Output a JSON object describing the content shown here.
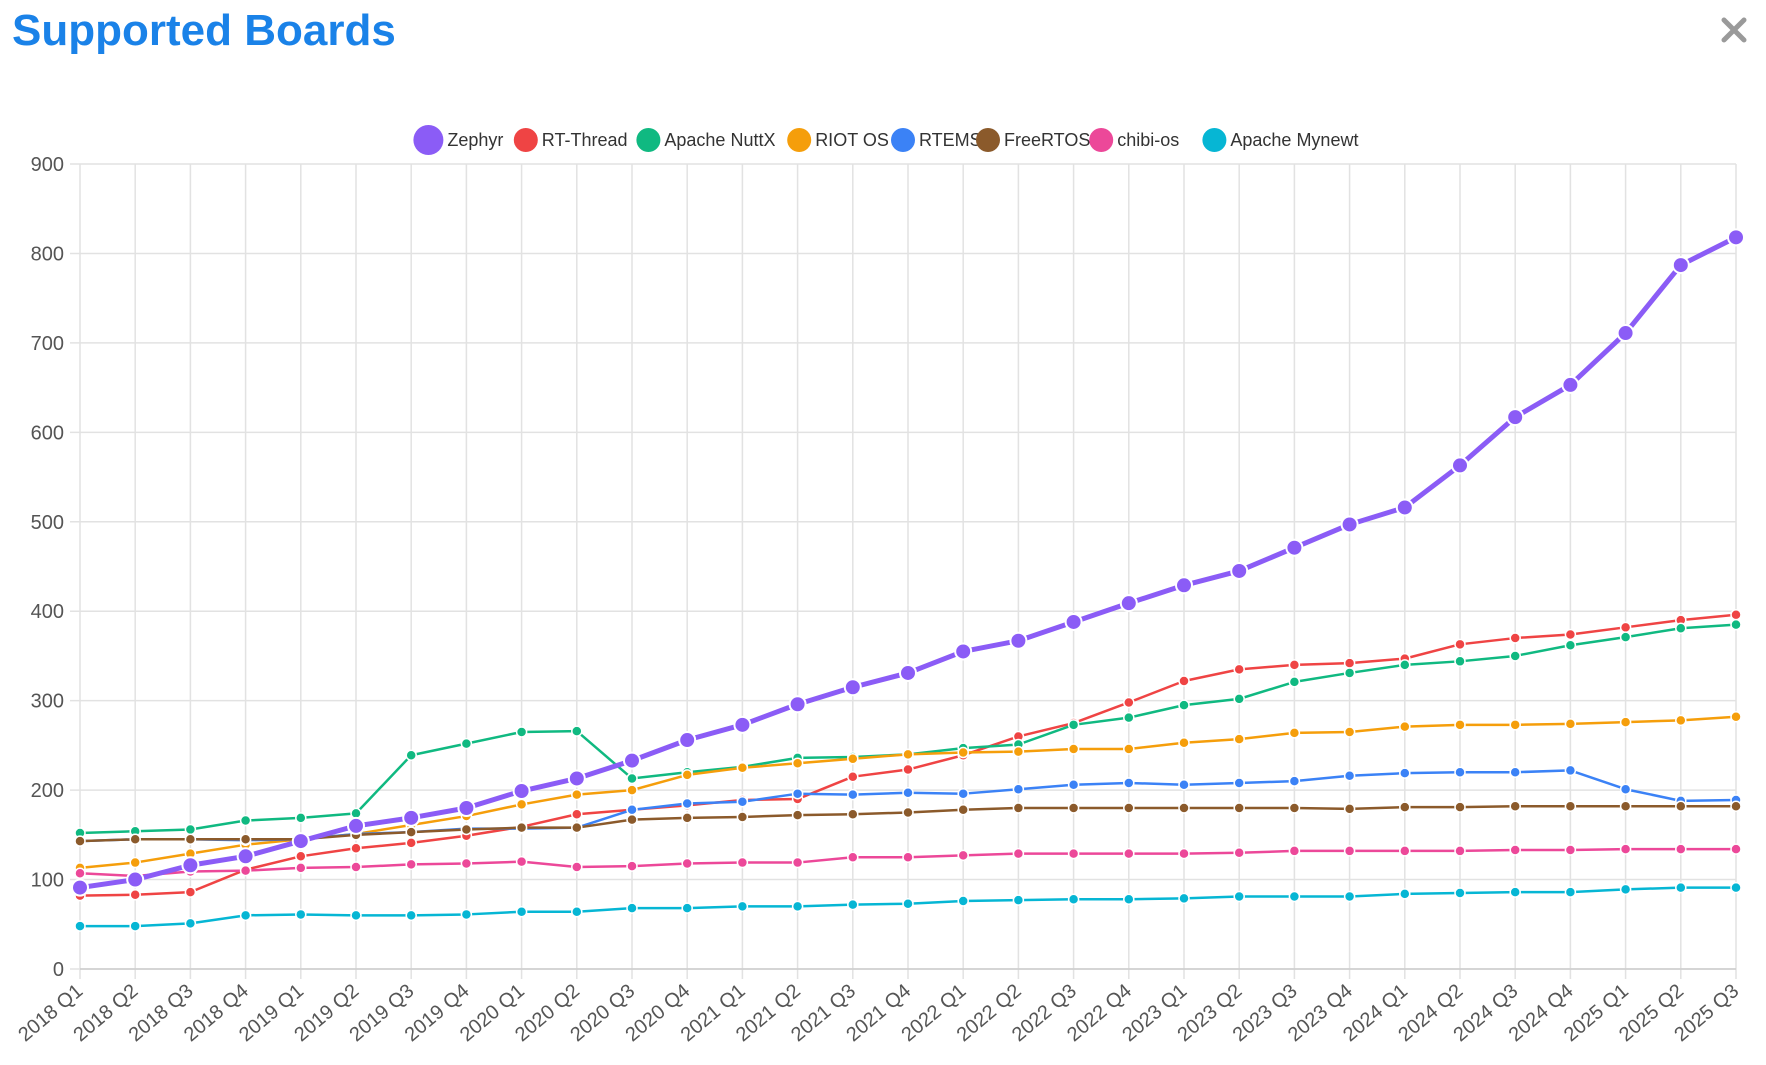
{
  "page": {
    "title": "Supported Boards"
  },
  "icons": {
    "close": "close-icon"
  },
  "chart_data": {
    "type": "line",
    "title": "",
    "xlabel": "",
    "ylabel": "",
    "ylim": [
      0,
      900
    ],
    "yticks": [
      0,
      100,
      200,
      300,
      400,
      500,
      600,
      700,
      800,
      900
    ],
    "grid": true,
    "legend_position": "top-center",
    "categories": [
      "2018 Q1",
      "2018 Q2",
      "2018 Q3",
      "2018 Q4",
      "2019 Q1",
      "2019 Q2",
      "2019 Q3",
      "2019 Q4",
      "2020 Q1",
      "2020 Q2",
      "2020 Q3",
      "2020 Q4",
      "2021 Q1",
      "2021 Q2",
      "2021 Q3",
      "2021 Q4",
      "2022 Q1",
      "2022 Q2",
      "2022 Q3",
      "2022 Q4",
      "2023 Q1",
      "2023 Q2",
      "2023 Q3",
      "2023 Q4",
      "2024 Q1",
      "2024 Q2",
      "2024 Q3",
      "2024 Q4",
      "2025 Q1",
      "2025 Q2",
      "2025 Q3"
    ],
    "series": [
      {
        "name": "Zephyr",
        "color": "#8b5cf6",
        "emphasis": true,
        "values": [
          91,
          100,
          116,
          126,
          143,
          160,
          169,
          180,
          199,
          213,
          233,
          256,
          273,
          296,
          315,
          331,
          355,
          367,
          388,
          409,
          429,
          445,
          471,
          497,
          516,
          563,
          617,
          653,
          711,
          787,
          818
        ]
      },
      {
        "name": "RT-Thread",
        "color": "#ef4444",
        "values": [
          82,
          83,
          86,
          111,
          126,
          135,
          141,
          149,
          159,
          173,
          178,
          183,
          189,
          190,
          215,
          223,
          239,
          260,
          275,
          298,
          322,
          335,
          340,
          342,
          347,
          363,
          370,
          374,
          382,
          390,
          396
        ]
      },
      {
        "name": "Apache NuttX",
        "color": "#10b981",
        "values": [
          152,
          154,
          156,
          166,
          169,
          174,
          239,
          252,
          265,
          266,
          213,
          220,
          226,
          236,
          237,
          240,
          247,
          251,
          273,
          281,
          295,
          302,
          321,
          331,
          340,
          344,
          350,
          362,
          371,
          381,
          385
        ]
      },
      {
        "name": "RIOT OS",
        "color": "#f59e0b",
        "values": [
          113,
          119,
          129,
          139,
          145,
          151,
          161,
          171,
          184,
          195,
          200,
          217,
          225,
          230,
          235,
          240,
          242,
          243,
          246,
          246,
          253,
          257,
          264,
          265,
          271,
          273,
          273,
          274,
          276,
          278,
          282
        ]
      },
      {
        "name": "RTEMS",
        "color": "#3b82f6",
        "values": [
          143,
          145,
          145,
          144,
          145,
          151,
          153,
          157,
          157,
          158,
          178,
          185,
          187,
          196,
          195,
          197,
          196,
          201,
          206,
          208,
          206,
          208,
          210,
          216,
          219,
          220,
          220,
          222,
          201,
          188,
          189
        ]
      },
      {
        "name": "FreeRTOS",
        "color": "#8b5a2b",
        "values": [
          143,
          145,
          145,
          145,
          145,
          150,
          153,
          156,
          158,
          158,
          167,
          169,
          170,
          172,
          173,
          175,
          178,
          180,
          180,
          180,
          180,
          180,
          180,
          179,
          181,
          181,
          182,
          182,
          182,
          182,
          182
        ]
      },
      {
        "name": "chibi-os",
        "color": "#ec4899",
        "values": [
          107,
          104,
          109,
          110,
          113,
          114,
          117,
          118,
          120,
          114,
          115,
          118,
          119,
          119,
          125,
          125,
          127,
          129,
          129,
          129,
          129,
          130,
          132,
          132,
          132,
          132,
          133,
          133,
          134,
          134,
          134
        ]
      },
      {
        "name": "Apache Mynewt",
        "color": "#06b6d4",
        "values": [
          48,
          48,
          51,
          60,
          61,
          60,
          60,
          61,
          64,
          64,
          68,
          68,
          70,
          70,
          72,
          73,
          76,
          77,
          78,
          78,
          79,
          81,
          81,
          81,
          84,
          85,
          86,
          86,
          89,
          91,
          91
        ]
      }
    ]
  }
}
